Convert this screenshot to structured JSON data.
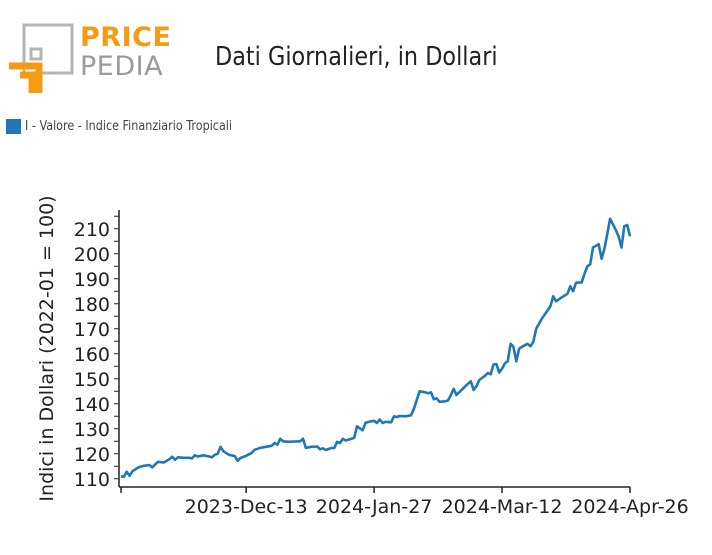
{
  "logo": {
    "line1": "PRICE",
    "line2": "PEDIA",
    "colors": {
      "orange": "#f39c12",
      "gray": "#9a9a9a"
    }
  },
  "header": {
    "title": "Dati Giornalieri, in Dollari"
  },
  "legend": {
    "label": "I - Valore - Indice Finanziario Tropicali",
    "color": "#1f77b4"
  },
  "chart_data": {
    "type": "line",
    "title": "Dati Giornalieri, in Dollari",
    "xlabel": "",
    "ylabel": "Indici in Dollari (2022-01 = 100)",
    "ylim": [
      107.5,
      217.5
    ],
    "yticks": [
      110,
      120,
      130,
      140,
      150,
      160,
      170,
      180,
      190,
      200,
      210
    ],
    "xlim": [
      "2023-10-30",
      "2024-04-26"
    ],
    "xticks": [
      "2023-Dec-13",
      "2024-Jan-27",
      "2024-Mar-12",
      "2024-Apr-26"
    ],
    "grid": false,
    "legend_position": "top-left",
    "series": [
      {
        "name": "I - Valore - Indice Finanziario Tropicali",
        "color": "#1f77b4",
        "points": [
          [
            "2023-10-30",
            111.0
          ],
          [
            "2023-10-31",
            110.8
          ],
          [
            "2023-11-01",
            112.8
          ],
          [
            "2023-11-02",
            111.2
          ],
          [
            "2023-11-03",
            113.0
          ],
          [
            "2023-11-05",
            114.5
          ],
          [
            "2023-11-07",
            115.2
          ],
          [
            "2023-11-09",
            115.5
          ],
          [
            "2023-11-10",
            114.6
          ],
          [
            "2023-11-12",
            116.8
          ],
          [
            "2023-11-14",
            116.5
          ],
          [
            "2023-11-16",
            117.8
          ],
          [
            "2023-11-17",
            118.8
          ],
          [
            "2023-11-18",
            117.6
          ],
          [
            "2023-11-19",
            118.6
          ],
          [
            "2023-11-21",
            118.4
          ],
          [
            "2023-11-23",
            118.4
          ],
          [
            "2023-11-24",
            118.2
          ],
          [
            "2023-11-25",
            119.4
          ],
          [
            "2023-11-26",
            118.9
          ],
          [
            "2023-11-28",
            119.4
          ],
          [
            "2023-11-30",
            118.9
          ],
          [
            "2023-12-01",
            118.6
          ],
          [
            "2023-12-02",
            119.6
          ],
          [
            "2023-12-03",
            120.0
          ],
          [
            "2023-12-04",
            122.8
          ],
          [
            "2023-12-05",
            121.0
          ],
          [
            "2023-12-07",
            119.6
          ],
          [
            "2023-12-09",
            119.1
          ],
          [
            "2023-12-10",
            117.2
          ],
          [
            "2023-12-11",
            118.3
          ],
          [
            "2023-12-13",
            119.2
          ],
          [
            "2023-12-15",
            120.4
          ],
          [
            "2023-12-16",
            121.6
          ],
          [
            "2023-12-18",
            122.4
          ],
          [
            "2023-12-20",
            122.8
          ],
          [
            "2023-12-22",
            123.2
          ],
          [
            "2023-12-23",
            124.3
          ],
          [
            "2023-12-24",
            123.6
          ],
          [
            "2023-12-25",
            126.0
          ],
          [
            "2023-12-26",
            125.0
          ],
          [
            "2023-12-28",
            124.8
          ],
          [
            "2023-12-30",
            124.9
          ],
          [
            "2024-01-01",
            125.0
          ],
          [
            "2024-01-02",
            126.0
          ],
          [
            "2024-01-03",
            122.4
          ],
          [
            "2024-01-05",
            122.8
          ],
          [
            "2024-01-07",
            122.9
          ],
          [
            "2024-01-08",
            121.8
          ],
          [
            "2024-01-09",
            122.2
          ],
          [
            "2024-01-10",
            121.5
          ],
          [
            "2024-01-12",
            122.3
          ],
          [
            "2024-01-13",
            122.3
          ],
          [
            "2024-01-14",
            124.8
          ],
          [
            "2024-01-15",
            124.3
          ],
          [
            "2024-01-16",
            126.0
          ],
          [
            "2024-01-17",
            125.3
          ],
          [
            "2024-01-19",
            126.0
          ],
          [
            "2024-01-20",
            126.4
          ],
          [
            "2024-01-21",
            131.0
          ],
          [
            "2024-01-23",
            129.4
          ],
          [
            "2024-01-24",
            132.4
          ],
          [
            "2024-01-26",
            133.0
          ],
          [
            "2024-01-27",
            133.2
          ],
          [
            "2024-01-28",
            132.3
          ],
          [
            "2024-01-29",
            133.7
          ],
          [
            "2024-01-30",
            132.3
          ],
          [
            "2024-01-31",
            132.8
          ],
          [
            "2024-02-02",
            132.6
          ],
          [
            "2024-02-03",
            135.0
          ],
          [
            "2024-02-04",
            134.7
          ],
          [
            "2024-02-05",
            135.1
          ],
          [
            "2024-02-07",
            135.0
          ],
          [
            "2024-02-09",
            135.4
          ],
          [
            "2024-02-10",
            138.0
          ],
          [
            "2024-02-12",
            145.0
          ],
          [
            "2024-02-14",
            144.6
          ],
          [
            "2024-02-15",
            144.2
          ],
          [
            "2024-02-16",
            144.6
          ],
          [
            "2024-02-17",
            141.8
          ],
          [
            "2024-02-18",
            142.2
          ],
          [
            "2024-02-19",
            140.8
          ],
          [
            "2024-02-21",
            141.0
          ],
          [
            "2024-02-22",
            141.3
          ],
          [
            "2024-02-23",
            143.5
          ],
          [
            "2024-02-24",
            146.0
          ],
          [
            "2024-02-25",
            143.5
          ],
          [
            "2024-02-27",
            145.8
          ],
          [
            "2024-02-29",
            148.0
          ],
          [
            "2024-03-01",
            149.0
          ],
          [
            "2024-03-02",
            145.5
          ],
          [
            "2024-03-03",
            147.0
          ],
          [
            "2024-03-04",
            149.5
          ],
          [
            "2024-03-06",
            151.2
          ],
          [
            "2024-03-07",
            152.3
          ],
          [
            "2024-03-08",
            151.8
          ],
          [
            "2024-03-09",
            155.7
          ],
          [
            "2024-03-10",
            155.9
          ],
          [
            "2024-03-11",
            152.5
          ],
          [
            "2024-03-12",
            154.0
          ],
          [
            "2024-03-13",
            156.2
          ],
          [
            "2024-03-14",
            157.0
          ],
          [
            "2024-03-15",
            164.0
          ],
          [
            "2024-03-16",
            162.8
          ],
          [
            "2024-03-17",
            157.0
          ],
          [
            "2024-03-18",
            162.0
          ],
          [
            "2024-03-19",
            162.8
          ],
          [
            "2024-03-21",
            164.0
          ],
          [
            "2024-03-22",
            163.0
          ],
          [
            "2024-03-23",
            164.8
          ],
          [
            "2024-03-24",
            170.0
          ],
          [
            "2024-03-26",
            174.0
          ],
          [
            "2024-03-28",
            177.3
          ],
          [
            "2024-03-29",
            179.0
          ],
          [
            "2024-03-30",
            183.0
          ],
          [
            "2024-03-31",
            181.0
          ],
          [
            "2024-04-02",
            182.6
          ],
          [
            "2024-04-04",
            184.0
          ],
          [
            "2024-04-05",
            187.0
          ],
          [
            "2024-04-06",
            185.0
          ],
          [
            "2024-04-07",
            188.4
          ],
          [
            "2024-04-09",
            188.6
          ],
          [
            "2024-04-10",
            192.0
          ],
          [
            "2024-04-11",
            195.0
          ],
          [
            "2024-04-12",
            195.8
          ],
          [
            "2024-04-13",
            202.5
          ],
          [
            "2024-04-15",
            203.8
          ],
          [
            "2024-04-16",
            198.0
          ],
          [
            "2024-04-17",
            202.0
          ],
          [
            "2024-04-18",
            208.0
          ],
          [
            "2024-04-19",
            214.0
          ],
          [
            "2024-04-21",
            209.5
          ],
          [
            "2024-04-22",
            207.0
          ],
          [
            "2024-04-23",
            202.5
          ],
          [
            "2024-04-24",
            211.0
          ],
          [
            "2024-04-25",
            211.5
          ],
          [
            "2024-04-26",
            207.0
          ]
        ]
      }
    ]
  }
}
